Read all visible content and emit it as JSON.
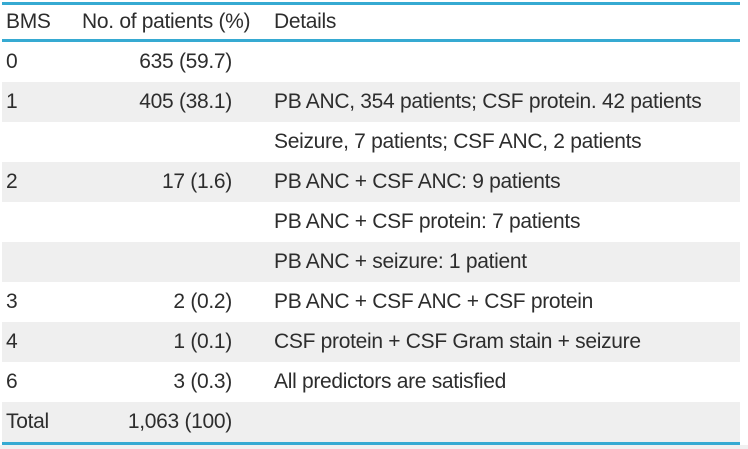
{
  "table": {
    "columns": {
      "bms": "BMS",
      "patients": "No. of patients (%)",
      "details": "Details"
    },
    "rows": [
      {
        "bms": "0",
        "patients": "635 (59.7)",
        "details": ""
      },
      {
        "bms": "1",
        "patients": "405 (38.1)",
        "details": "PB ANC, 354 patients; CSF protein. 42 patients"
      },
      {
        "bms": "",
        "patients": "",
        "details": "Seizure, 7 patients; CSF ANC, 2 patients"
      },
      {
        "bms": "2",
        "patients": "17 (1.6)",
        "details": "PB ANC + CSF ANC: 9 patients"
      },
      {
        "bms": "",
        "patients": "",
        "details": "PB ANC + CSF protein: 7 patients"
      },
      {
        "bms": "",
        "patients": "",
        "details": "PB ANC + seizure: 1 patient"
      },
      {
        "bms": "3",
        "patients": "2 (0.2)",
        "details": "PB ANC + CSF ANC + CSF protein"
      },
      {
        "bms": "4",
        "patients": "1 (0.1)",
        "details": "CSF protein + CSF Gram stain + seizure"
      },
      {
        "bms": "6",
        "patients": "3 (0.3)",
        "details": "All predictors are satisfied"
      },
      {
        "bms": "Total",
        "patients": "1,063 (100)",
        "details": ""
      }
    ]
  },
  "colors": {
    "accent": "#36aad2",
    "stripe": "#efefef",
    "text": "#2d2d2d"
  }
}
